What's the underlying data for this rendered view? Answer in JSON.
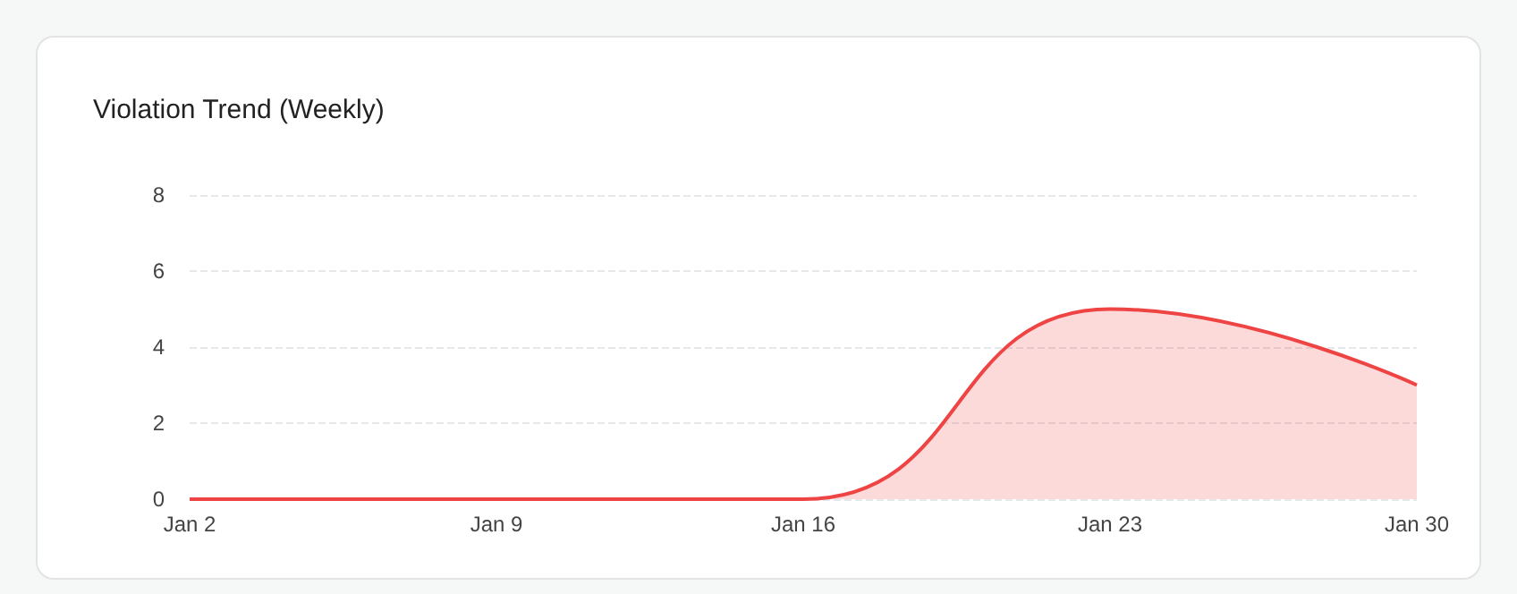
{
  "chart_data": {
    "type": "area",
    "title": "Violation Trend (Weekly)",
    "categories": [
      "Jan 2",
      "Jan 9",
      "Jan 16",
      "Jan 23",
      "Jan 30"
    ],
    "series": [
      {
        "color": "#ef4444",
        "values": [
          0,
          0,
          0,
          5,
          3
        ]
      }
    ],
    "ylim": [
      0,
      8
    ],
    "yticks": [
      0,
      2,
      4,
      6,
      8
    ],
    "grid": "y",
    "marker": "none",
    "line_style": "solid"
  }
}
